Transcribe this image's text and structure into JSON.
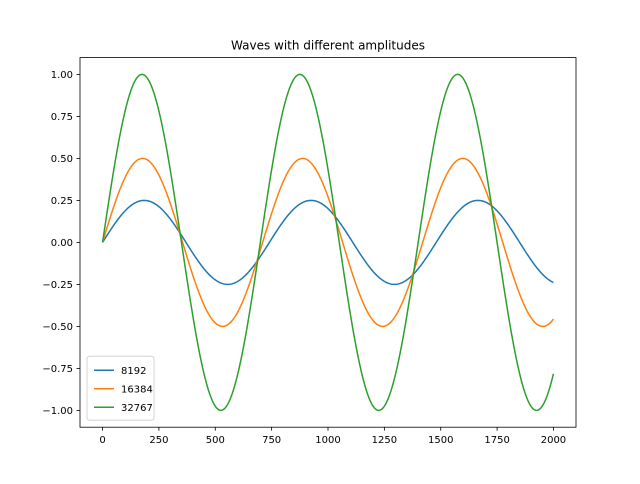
{
  "chart_data": {
    "type": "line",
    "title": "Waves with different amplitudes",
    "xlabel": "",
    "ylabel": "",
    "xlim": [
      -100,
      2100
    ],
    "ylim": [
      -1.1,
      1.1
    ],
    "grid": false,
    "legend_position": "lower-left",
    "x_ticks": [
      0,
      250,
      500,
      750,
      1000,
      1250,
      1500,
      1750,
      2000
    ],
    "x_tick_labels": [
      "0",
      "250",
      "500",
      "750",
      "1000",
      "1250",
      "1500",
      "1750",
      "2000"
    ],
    "y_ticks": [
      -1.0,
      -0.75,
      -0.5,
      -0.25,
      0.0,
      0.25,
      0.5,
      0.75,
      1.0
    ],
    "y_tick_labels": [
      "−1.00",
      "−0.75",
      "−0.50",
      "−0.25",
      "0.00",
      "0.25",
      "0.50",
      "0.75",
      "1.00"
    ],
    "series": [
      {
        "name": "8192",
        "color": "#1f77b4",
        "amplitude": 0.25,
        "period": 740,
        "x_range": [
          0,
          2000
        ],
        "values_y_at_x_end": -0.23
      },
      {
        "name": "16384",
        "color": "#ff7f0e",
        "amplitude": 0.5,
        "period": 710,
        "x_range": [
          0,
          2000
        ],
        "values_y_at_x_end": -0.41
      },
      {
        "name": "32767",
        "color": "#2ca02c",
        "amplitude": 1.0,
        "period": 700,
        "x_range": [
          0,
          2000
        ],
        "values_y_at_x_end": -0.69
      }
    ]
  }
}
